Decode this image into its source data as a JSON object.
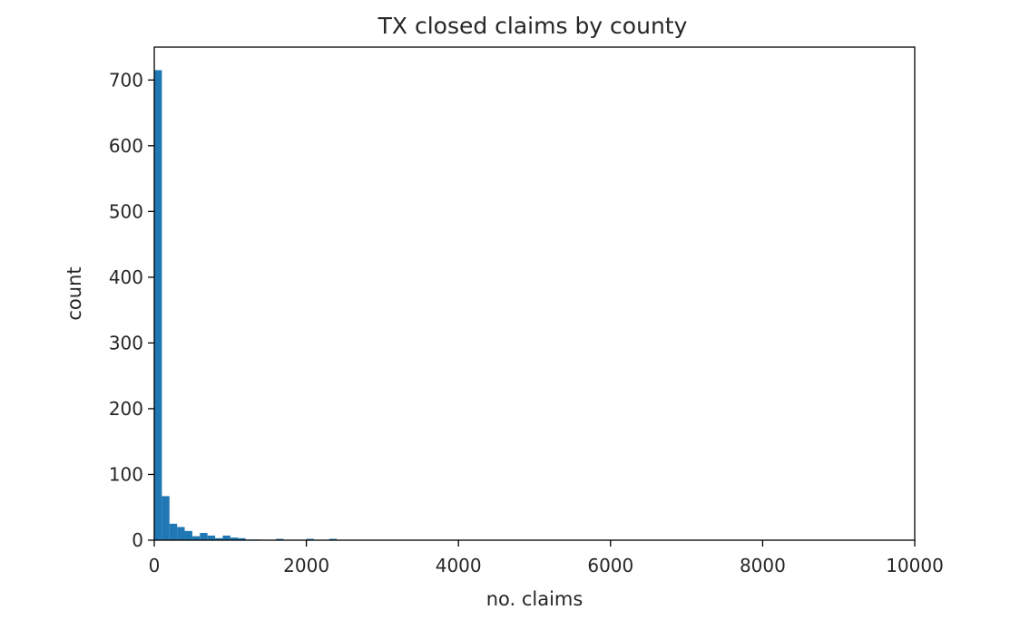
{
  "chart_data": {
    "type": "bar",
    "subtype": "histogram",
    "title": "TX closed claims by county",
    "xlabel": "no. claims",
    "ylabel": "count",
    "xlim": [
      0,
      10000
    ],
    "ylim": [
      0,
      750
    ],
    "x_ticks": [
      "0",
      "2000",
      "4000",
      "6000",
      "8000",
      "10000"
    ],
    "y_ticks": [
      "0",
      "100",
      "200",
      "300",
      "400",
      "500",
      "600",
      "700"
    ],
    "grid": false,
    "legend": "none",
    "bar_color": "#1f77b4",
    "bins": [
      {
        "x0": 0,
        "x1": 100,
        "count": 715
      },
      {
        "x0": 100,
        "x1": 200,
        "count": 67
      },
      {
        "x0": 200,
        "x1": 300,
        "count": 25
      },
      {
        "x0": 300,
        "x1": 400,
        "count": 20
      },
      {
        "x0": 400,
        "x1": 500,
        "count": 14
      },
      {
        "x0": 500,
        "x1": 600,
        "count": 6
      },
      {
        "x0": 600,
        "x1": 700,
        "count": 11
      },
      {
        "x0": 700,
        "x1": 800,
        "count": 7
      },
      {
        "x0": 800,
        "x1": 900,
        "count": 3
      },
      {
        "x0": 900,
        "x1": 1000,
        "count": 7
      },
      {
        "x0": 1000,
        "x1": 1100,
        "count": 4
      },
      {
        "x0": 1100,
        "x1": 1200,
        "count": 3
      },
      {
        "x0": 1200,
        "x1": 1300,
        "count": 1
      },
      {
        "x0": 1300,
        "x1": 1400,
        "count": 1
      },
      {
        "x0": 1600,
        "x1": 1700,
        "count": 2
      },
      {
        "x0": 2000,
        "x1": 2100,
        "count": 2
      },
      {
        "x0": 2300,
        "x1": 2400,
        "count": 2
      }
    ]
  }
}
